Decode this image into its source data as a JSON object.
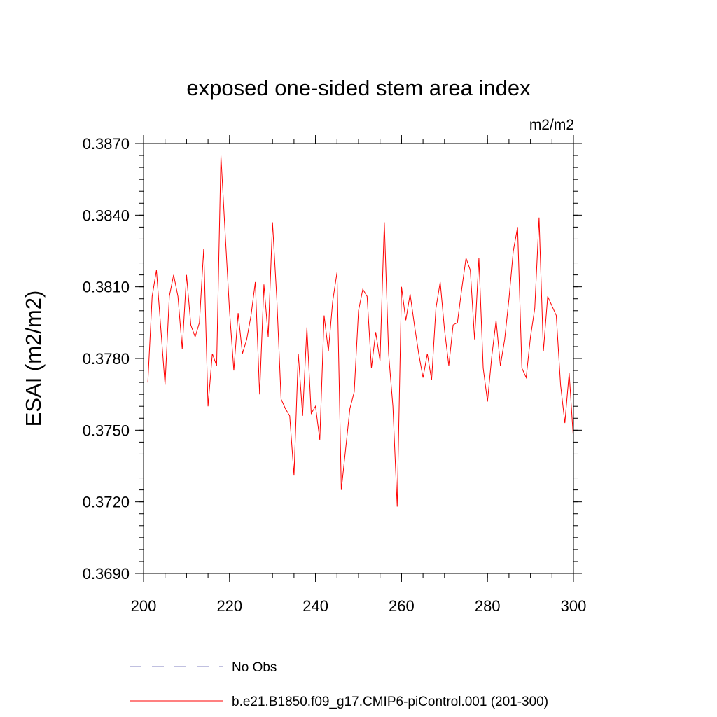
{
  "chart_data": {
    "type": "line",
    "title": "exposed one-sided stem area index",
    "units_label": "m2/m2",
    "ylabel": "ESAI  (m2/m2)",
    "xlabel": "",
    "xlim": [
      200,
      300
    ],
    "ylim": [
      0.369,
      0.387
    ],
    "x_ticks": [
      200,
      220,
      240,
      260,
      280,
      300
    ],
    "x_tick_labels": [
      "200",
      "220",
      "240",
      "260",
      "280",
      "300"
    ],
    "y_ticks": [
      0.369,
      0.372,
      0.375,
      0.378,
      0.381,
      0.384,
      0.387
    ],
    "y_tick_labels": [
      "0.3690",
      "0.3720",
      "0.3750",
      "0.3780",
      "0.3810",
      "0.3840",
      "0.3870"
    ],
    "x_minor_step": 5,
    "y_minor_step": 0.0005,
    "grid": false,
    "legend_placement": "bottom",
    "series": [
      {
        "name": "b.e21.B1850.f09_g17.CMIP6-piControl.001 (201-300)",
        "color": "#ff0000",
        "dash": "solid",
        "x": [
          201,
          202,
          203,
          204,
          205,
          206,
          207,
          208,
          209,
          210,
          211,
          212,
          213,
          214,
          215,
          216,
          217,
          218,
          219,
          220,
          221,
          222,
          223,
          224,
          225,
          226,
          227,
          228,
          229,
          230,
          231,
          232,
          233,
          234,
          235,
          236,
          237,
          238,
          239,
          240,
          241,
          242,
          243,
          244,
          245,
          246,
          247,
          248,
          249,
          250,
          251,
          252,
          253,
          254,
          255,
          256,
          257,
          258,
          259,
          260,
          261,
          262,
          263,
          264,
          265,
          266,
          267,
          268,
          269,
          270,
          271,
          272,
          273,
          274,
          275,
          276,
          277,
          278,
          279,
          280,
          281,
          282,
          283,
          284,
          285,
          286,
          287,
          288,
          289,
          290,
          291,
          292,
          293,
          294,
          295,
          296,
          297,
          298,
          299,
          300
        ],
        "values": [
          0.377,
          0.3806,
          0.3817,
          0.3793,
          0.3769,
          0.3806,
          0.3815,
          0.3806,
          0.3784,
          0.3815,
          0.3794,
          0.3789,
          0.3795,
          0.3826,
          0.376,
          0.3782,
          0.3777,
          0.3865,
          0.3832,
          0.38,
          0.3775,
          0.3799,
          0.3782,
          0.3788,
          0.3798,
          0.3812,
          0.3765,
          0.3811,
          0.3789,
          0.3837,
          0.3805,
          0.3763,
          0.3759,
          0.3756,
          0.3731,
          0.3782,
          0.3756,
          0.3793,
          0.3757,
          0.376,
          0.3746,
          0.3798,
          0.3783,
          0.3804,
          0.3816,
          0.3725,
          0.3742,
          0.3759,
          0.3766,
          0.38,
          0.3809,
          0.3806,
          0.3776,
          0.3791,
          0.3779,
          0.3837,
          0.3782,
          0.376,
          0.3718,
          0.381,
          0.3796,
          0.3807,
          0.3794,
          0.3782,
          0.3772,
          0.3782,
          0.3771,
          0.3801,
          0.3812,
          0.3792,
          0.3777,
          0.3794,
          0.3795,
          0.3809,
          0.3822,
          0.3817,
          0.3788,
          0.3822,
          0.3776,
          0.3762,
          0.3781,
          0.3796,
          0.3777,
          0.3788,
          0.3805,
          0.3825,
          0.3835,
          0.3776,
          0.3772,
          0.3789,
          0.3801,
          0.3839,
          0.3783,
          0.3806,
          0.3802,
          0.3798,
          0.3769,
          0.3753,
          0.3774,
          0.3746
        ]
      }
    ],
    "legend": [
      {
        "label": "No Obs",
        "color": "#8080c0",
        "dash": "dashed"
      },
      {
        "label": "b.e21.B1850.f09_g17.CMIP6-piControl.001 (201-300)",
        "color": "#ff0000",
        "dash": "solid"
      }
    ]
  }
}
